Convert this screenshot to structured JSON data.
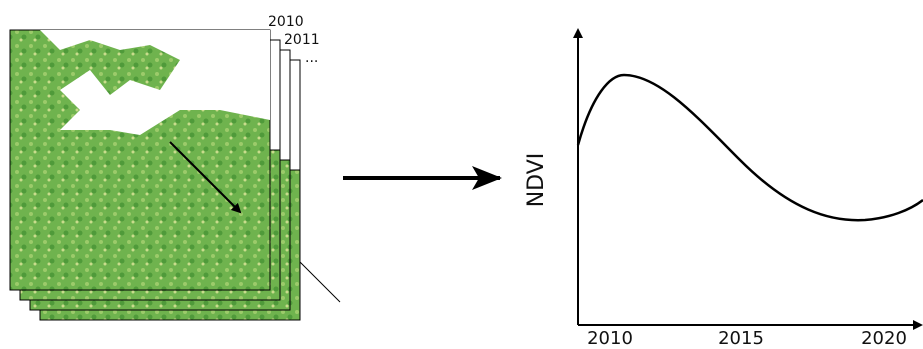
{
  "stack": {
    "layer_labels": [
      "2010",
      "2011",
      "..."
    ]
  },
  "plot": {
    "y_label": "NDVI",
    "x_ticks": [
      "2010",
      "2015",
      "2020"
    ]
  }
}
